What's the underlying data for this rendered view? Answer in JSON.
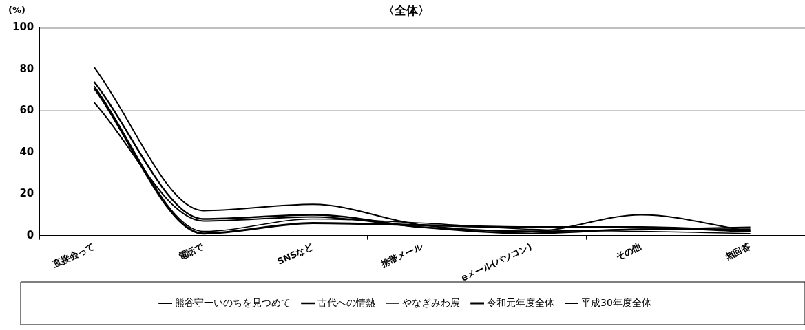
{
  "chart_data": {
    "type": "line",
    "title": "〈全体〉",
    "ylabel": "(%)",
    "categories": [
      "直接会って",
      "電話で",
      "SNSなど",
      "携帯メール",
      "eメール(パソコン)",
      "その他",
      "無回答"
    ],
    "series": [
      {
        "name": "熊谷守一いのちを見つめて",
        "color": "#000000",
        "values": [
          81,
          12,
          15,
          5,
          2,
          10,
          2
        ]
      },
      {
        "name": "古代への情熱",
        "color": "#000000",
        "values": [
          74,
          8,
          10,
          4,
          1,
          3,
          3
        ]
      },
      {
        "name": "やなぎみわ展",
        "color": "#000000",
        "values": [
          72,
          2,
          8,
          6,
          3,
          2,
          1
        ]
      },
      {
        "name": "令和元年度全体",
        "color": "#000000",
        "values": [
          71,
          1,
          6,
          5,
          4,
          4,
          2
        ]
      },
      {
        "name": "平成30年度全体",
        "color": "#000000",
        "values": [
          64,
          7,
          9,
          4,
          2,
          3,
          4
        ]
      }
    ],
    "ylim": [
      0,
      100
    ],
    "yticks": [
      0,
      20,
      40,
      60,
      80,
      100
    ],
    "ref_lines": [
      {
        "axis": "y",
        "value": 60
      }
    ],
    "legend": "bottom",
    "marker": "none",
    "line_style": "solid"
  }
}
